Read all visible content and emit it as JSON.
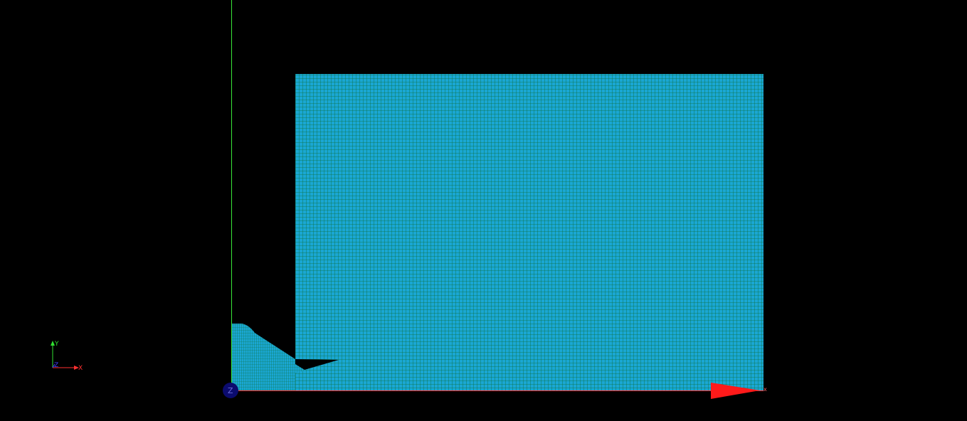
{
  "viewport": {
    "background_color": "#000000",
    "mesh_fill_color": "#1aa7d3",
    "mesh_line_color": "#0d6f3a",
    "y_axis_color": "#39e639",
    "x_axis_color": "#ff2a2a",
    "origin_marker_color": "#0b0b6e"
  },
  "triad": {
    "x_label": "X",
    "y_label": "Y",
    "z_label": "Z",
    "x_color": "#ff3030",
    "y_color": "#30e030",
    "z_color": "#4040ff"
  },
  "origin_marker": {
    "label": "Z"
  },
  "x_arrow": {
    "label": "x"
  }
}
